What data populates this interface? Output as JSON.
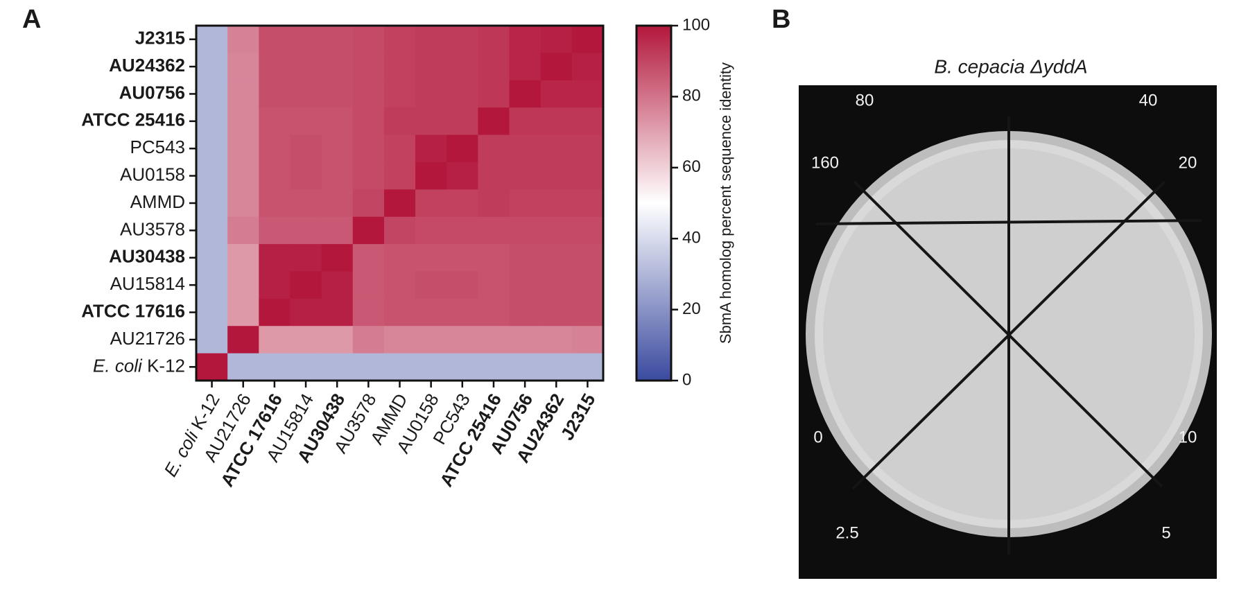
{
  "chart_data": {
    "type": "heatmap",
    "panel_label": "A",
    "y_categories": [
      "J2315",
      "AU24362",
      "AU0756",
      "ATCC 25416",
      "PC543",
      "AU0158",
      "AMMD",
      "AU3578",
      "AU30438",
      "AU15814",
      "ATCC 17616",
      "AU21726",
      "E. coli K-12"
    ],
    "y_label_styles": [
      "bold",
      "bold",
      "bold",
      "bold",
      "normal",
      "normal",
      "normal",
      "normal",
      "bold",
      "normal",
      "bold",
      "normal",
      "species"
    ],
    "x_categories": [
      "E. coli K-12",
      "AU21726",
      "ATCC 17616",
      "AU15814",
      "AU30438",
      "AU3578",
      "AMMD",
      "AU0158",
      "PC543",
      "ATCC 25416",
      "AU0756",
      "AU24362",
      "J2315"
    ],
    "x_label_styles": [
      "species",
      "normal",
      "bold",
      "normal",
      "bold",
      "normal",
      "normal",
      "normal",
      "normal",
      "bold",
      "bold",
      "bold",
      "bold"
    ],
    "values": [
      [
        30,
        77,
        88,
        88,
        88,
        89,
        91,
        92,
        92,
        93,
        97,
        98,
        100
      ],
      [
        30,
        76,
        88,
        88,
        88,
        89,
        91,
        92,
        92,
        93,
        97,
        100,
        98
      ],
      [
        30,
        76,
        88,
        88,
        88,
        89,
        91,
        92,
        92,
        93,
        100,
        97,
        97
      ],
      [
        30,
        76,
        87,
        87,
        87,
        89,
        92,
        92,
        92,
        100,
        93,
        93,
        93
      ],
      [
        30,
        76,
        87,
        88,
        87,
        89,
        91,
        98,
        100,
        92,
        92,
        92,
        92
      ],
      [
        30,
        76,
        87,
        88,
        87,
        89,
        91,
        100,
        98,
        92,
        92,
        92,
        92
      ],
      [
        30,
        76,
        87,
        87,
        87,
        90,
        100,
        91,
        91,
        92,
        91,
        91,
        91
      ],
      [
        30,
        78,
        86,
        86,
        86,
        100,
        90,
        89,
        89,
        89,
        89,
        89,
        89
      ],
      [
        30,
        72,
        98,
        98,
        100,
        86,
        87,
        87,
        87,
        87,
        88,
        88,
        88
      ],
      [
        30,
        72,
        98,
        100,
        98,
        86,
        87,
        88,
        88,
        87,
        88,
        88,
        88
      ],
      [
        30,
        72,
        100,
        98,
        98,
        86,
        87,
        87,
        87,
        87,
        88,
        88,
        88
      ],
      [
        30,
        100,
        72,
        72,
        72,
        78,
        76,
        76,
        76,
        76,
        76,
        76,
        77
      ],
      [
        100,
        30,
        30,
        30,
        30,
        30,
        30,
        30,
        30,
        30,
        30,
        30,
        30
      ]
    ],
    "colormap": [
      "#3a4a9f",
      "#ffffff",
      "#b3173c"
    ],
    "colorbar_label": "SbmA homolog percent sequence identity",
    "clim": [
      0,
      100
    ],
    "cticks": [
      0,
      20,
      40,
      60,
      80,
      100
    ]
  },
  "panel_b": {
    "panel_label": "B",
    "title": "B. cepacia ΔyddA",
    "sector_labels": [
      "80",
      "40",
      "160",
      "20",
      "0",
      "10",
      "2.5",
      "5"
    ]
  }
}
